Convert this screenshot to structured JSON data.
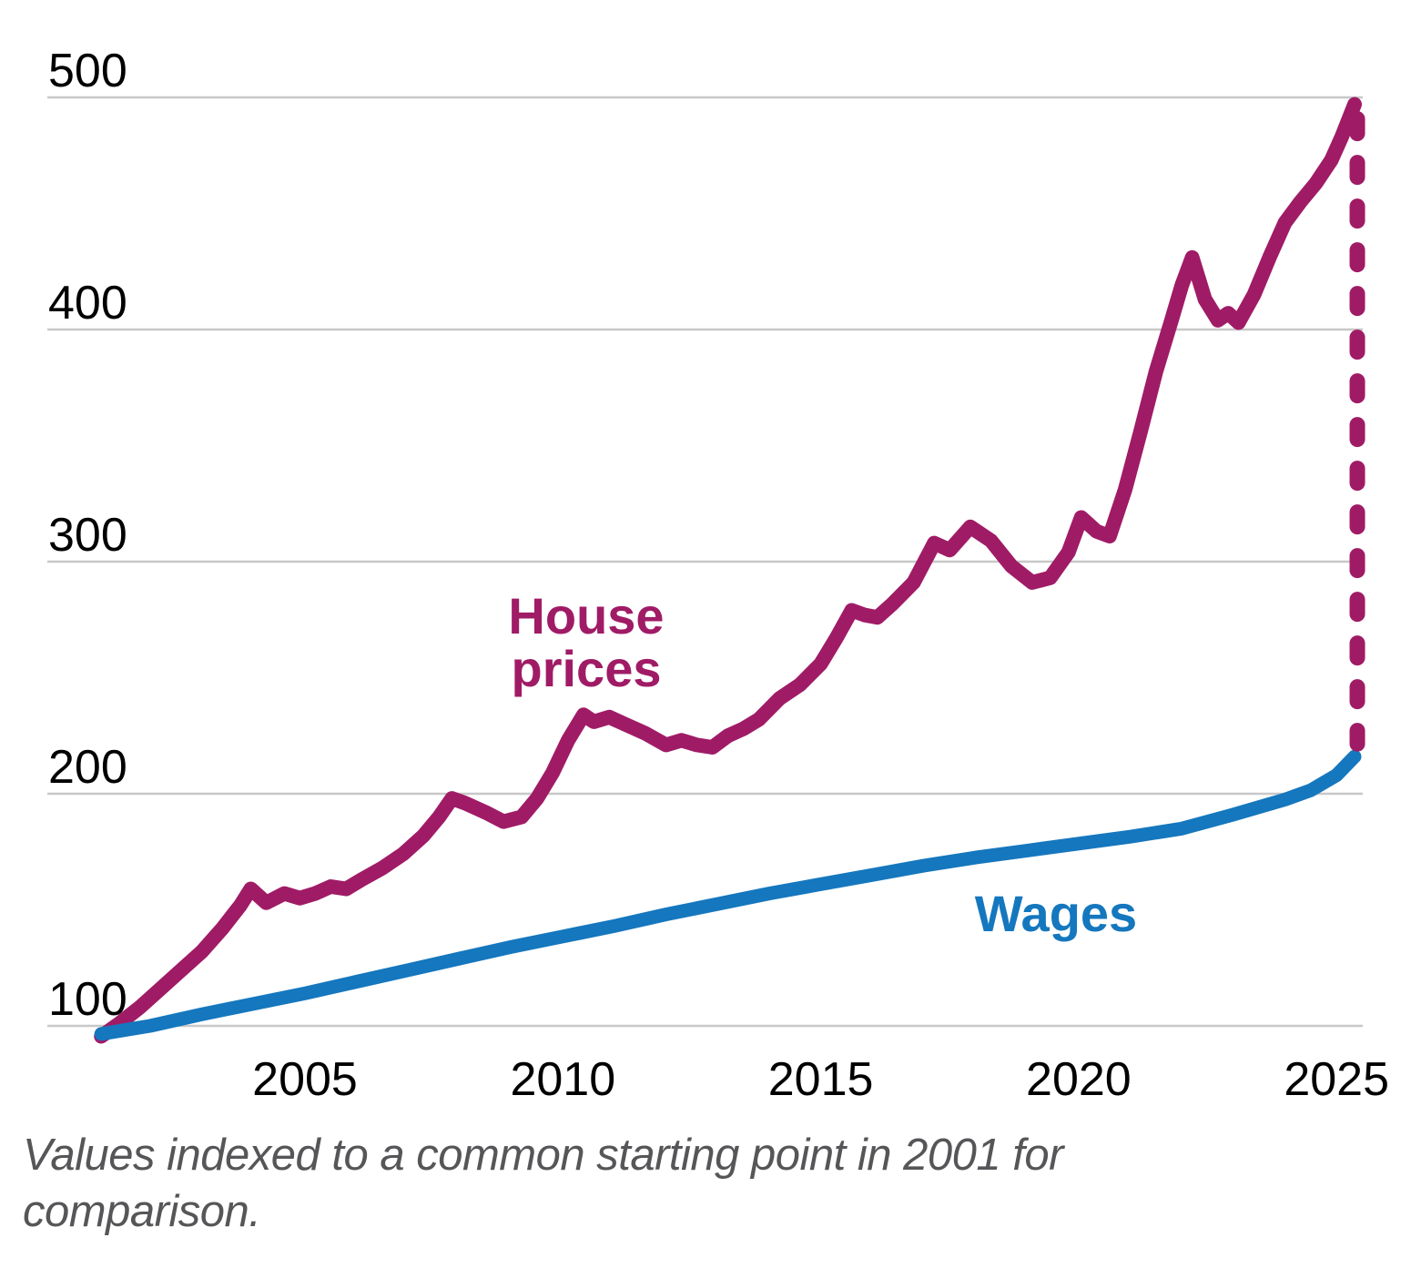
{
  "chart_data": {
    "type": "line",
    "title": "",
    "caption": "Values indexed to a common starting point in 2001 for comparison.",
    "x_axis": {
      "label": "",
      "ticks": [
        2005,
        2010,
        2015,
        2020,
        2025
      ],
      "range": [
        2001,
        2025.6
      ]
    },
    "y_axis": {
      "label": "",
      "ticks": [
        500,
        400,
        300,
        200,
        100
      ],
      "range": [
        90,
        500
      ]
    },
    "grid": true,
    "legend_position": "inline-labels",
    "series": [
      {
        "name": "House prices",
        "label_lines": [
          "House",
          "prices"
        ],
        "color": "#A01B66",
        "points": [
          [
            2001.05,
            95.5
          ],
          [
            2001.4,
            101
          ],
          [
            2001.8,
            108
          ],
          [
            2002.2,
            116
          ],
          [
            2002.6,
            124
          ],
          [
            2003.0,
            132
          ],
          [
            2003.4,
            142
          ],
          [
            2003.75,
            152
          ],
          [
            2003.95,
            159
          ],
          [
            2004.25,
            153
          ],
          [
            2004.6,
            157
          ],
          [
            2004.9,
            155
          ],
          [
            2005.2,
            157
          ],
          [
            2005.5,
            160
          ],
          [
            2005.8,
            159
          ],
          [
            2006.1,
            163
          ],
          [
            2006.5,
            168
          ],
          [
            2006.9,
            174
          ],
          [
            2007.3,
            182
          ],
          [
            2007.6,
            190
          ],
          [
            2007.85,
            198
          ],
          [
            2008.1,
            196
          ],
          [
            2008.5,
            192
          ],
          [
            2008.85,
            188
          ],
          [
            2009.2,
            190
          ],
          [
            2009.5,
            198
          ],
          [
            2009.8,
            209
          ],
          [
            2010.1,
            223
          ],
          [
            2010.4,
            234
          ],
          [
            2010.6,
            231
          ],
          [
            2010.9,
            233
          ],
          [
            2011.2,
            230
          ],
          [
            2011.6,
            226
          ],
          [
            2012.0,
            221
          ],
          [
            2012.3,
            223
          ],
          [
            2012.6,
            221
          ],
          [
            2012.9,
            220
          ],
          [
            2013.2,
            225
          ],
          [
            2013.5,
            228
          ],
          [
            2013.8,
            232
          ],
          [
            2014.2,
            241
          ],
          [
            2014.6,
            247
          ],
          [
            2015.0,
            256
          ],
          [
            2015.3,
            267
          ],
          [
            2015.6,
            279
          ],
          [
            2015.85,
            277
          ],
          [
            2016.1,
            276
          ],
          [
            2016.4,
            282
          ],
          [
            2016.8,
            291
          ],
          [
            2017.2,
            308
          ],
          [
            2017.5,
            305
          ],
          [
            2017.9,
            315
          ],
          [
            2018.3,
            309
          ],
          [
            2018.7,
            298
          ],
          [
            2019.1,
            291
          ],
          [
            2019.45,
            293
          ],
          [
            2019.8,
            304
          ],
          [
            2020.05,
            319
          ],
          [
            2020.35,
            313
          ],
          [
            2020.6,
            311
          ],
          [
            2020.9,
            331
          ],
          [
            2021.2,
            356
          ],
          [
            2021.5,
            382
          ],
          [
            2021.8,
            404
          ],
          [
            2022.0,
            419
          ],
          [
            2022.2,
            431
          ],
          [
            2022.45,
            413
          ],
          [
            2022.7,
            404
          ],
          [
            2022.9,
            407
          ],
          [
            2023.1,
            403
          ],
          [
            2023.4,
            415
          ],
          [
            2023.7,
            431
          ],
          [
            2024.0,
            446
          ],
          [
            2024.3,
            455
          ],
          [
            2024.6,
            463
          ],
          [
            2024.9,
            473
          ],
          [
            2025.1,
            483
          ],
          [
            2025.35,
            497
          ]
        ]
      },
      {
        "name": "Wages",
        "label_lines": [
          "Wages"
        ],
        "color": "#1577BE",
        "points": [
          [
            2001.05,
            96.5
          ],
          [
            2002,
            100
          ],
          [
            2003,
            105
          ],
          [
            2004,
            109.5
          ],
          [
            2005,
            114
          ],
          [
            2006,
            119
          ],
          [
            2007,
            124
          ],
          [
            2008,
            129
          ],
          [
            2009,
            134
          ],
          [
            2010,
            138.5
          ],
          [
            2011,
            143
          ],
          [
            2012,
            148
          ],
          [
            2013,
            152.5
          ],
          [
            2014,
            157
          ],
          [
            2015,
            161
          ],
          [
            2016,
            165
          ],
          [
            2017,
            169
          ],
          [
            2018,
            172.5
          ],
          [
            2019,
            175.5
          ],
          [
            2020,
            178.5
          ],
          [
            2021,
            181.5
          ],
          [
            2022,
            185
          ],
          [
            2023,
            191
          ],
          [
            2024,
            197.5
          ],
          [
            2024.5,
            201.5
          ],
          [
            2025,
            208
          ],
          [
            2025.35,
            216
          ]
        ]
      }
    ],
    "annotations": [
      {
        "type": "dashed-vertical-line",
        "description": "gap between house prices and wages at end of series",
        "x": 2025.35,
        "color": "#A01B66"
      }
    ]
  },
  "colors": {
    "background": "#FFFFFF",
    "grid": "#C8C8C8",
    "axis_text": "#000000",
    "caption_text": "#565659",
    "house_prices": "#A01B66",
    "wages": "#1577BE"
  }
}
